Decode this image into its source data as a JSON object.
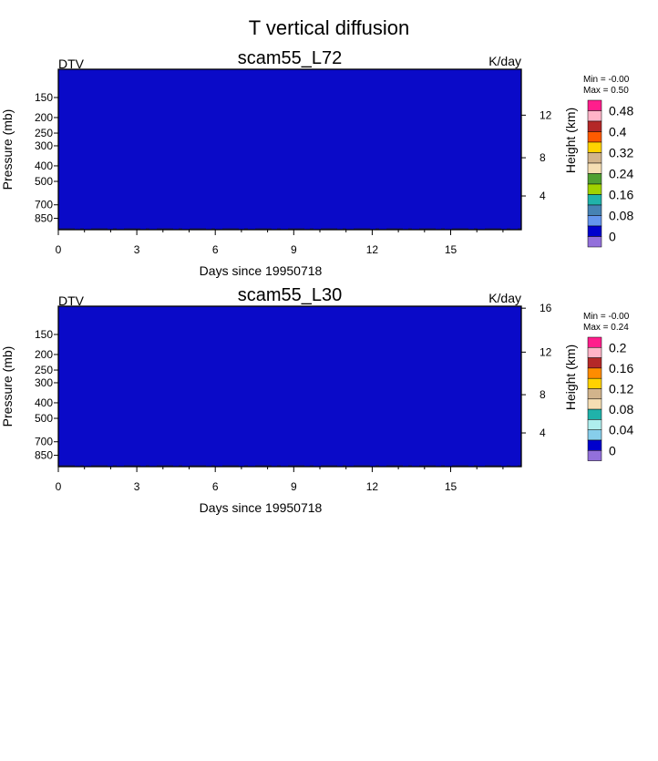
{
  "figure_title": "T vertical diffusion",
  "chart_data": [
    {
      "type": "heatmap",
      "title": "scam55_L72",
      "left_label": "DTV",
      "right_label": "K/day",
      "xlabel": "Days since 19950718",
      "ylabel": "Pressure (mb)",
      "y2label": "Height (km)",
      "x_ticks": [
        "0",
        "3",
        "6",
        "9",
        "12",
        "15"
      ],
      "x_tick_values": [
        0,
        3,
        6,
        9,
        12,
        15
      ],
      "x_range": [
        0,
        17.7
      ],
      "y_ticks": [
        "150",
        "200",
        "250",
        "300",
        "400",
        "500",
        "700",
        "850"
      ],
      "y_tick_values": [
        150,
        200,
        250,
        300,
        400,
        500,
        700,
        850
      ],
      "y_range_mb": [
        100,
        1000
      ],
      "y2_ticks": [
        "4",
        "8",
        "12"
      ],
      "y2_tick_values": [
        4,
        8,
        12
      ],
      "field_value": 0,
      "min_label": "Min =  -0.00",
      "max_label": "Max =   0.50",
      "colorbar_labels": [
        "0.48",
        "0.4",
        "0.32",
        "0.24",
        "0.16",
        "0.08",
        "0"
      ],
      "colorbar_colors": [
        "#ff1e8c",
        "#ffb4c8",
        "#b42828",
        "#ff5a00",
        "#ffd200",
        "#d2b48c",
        "#f5deb3",
        "#50a032",
        "#a0d200",
        "#20b2aa",
        "#4682b4",
        "#6495ed",
        "#0000cd",
        "#9370db"
      ],
      "field_color": "#0a0ac8"
    },
    {
      "type": "heatmap",
      "title": "scam55_L30",
      "left_label": "DTV",
      "right_label": "K/day",
      "xlabel": "Days since 19950718",
      "ylabel": "Pressure (mb)",
      "y2label": "Height (km)",
      "x_ticks": [
        "0",
        "3",
        "6",
        "9",
        "12",
        "15"
      ],
      "x_tick_values": [
        0,
        3,
        6,
        9,
        12,
        15
      ],
      "x_range": [
        0,
        17.7
      ],
      "y_ticks": [
        "150",
        "200",
        "250",
        "300",
        "400",
        "500",
        "700",
        "850"
      ],
      "y_tick_values": [
        150,
        200,
        250,
        300,
        400,
        500,
        700,
        850
      ],
      "y_range_mb": [
        100,
        1000
      ],
      "y2_ticks": [
        "4",
        "8",
        "12",
        "16"
      ],
      "y2_tick_values": [
        4,
        8,
        12,
        16
      ],
      "field_value": 0,
      "min_label": "Min =  -0.00",
      "max_label": "Max =   0.24",
      "colorbar_labels": [
        "0.2",
        "0.16",
        "0.12",
        "0.08",
        "0.04",
        "0"
      ],
      "colorbar_colors": [
        "#ff1e8c",
        "#ffb4c8",
        "#b42828",
        "#ff8c00",
        "#ffd200",
        "#d2b48c",
        "#f5deb3",
        "#20b2aa",
        "#afeeee",
        "#87ceeb",
        "#0000cd",
        "#9370db"
      ],
      "field_color": "#0a0ac8"
    }
  ]
}
